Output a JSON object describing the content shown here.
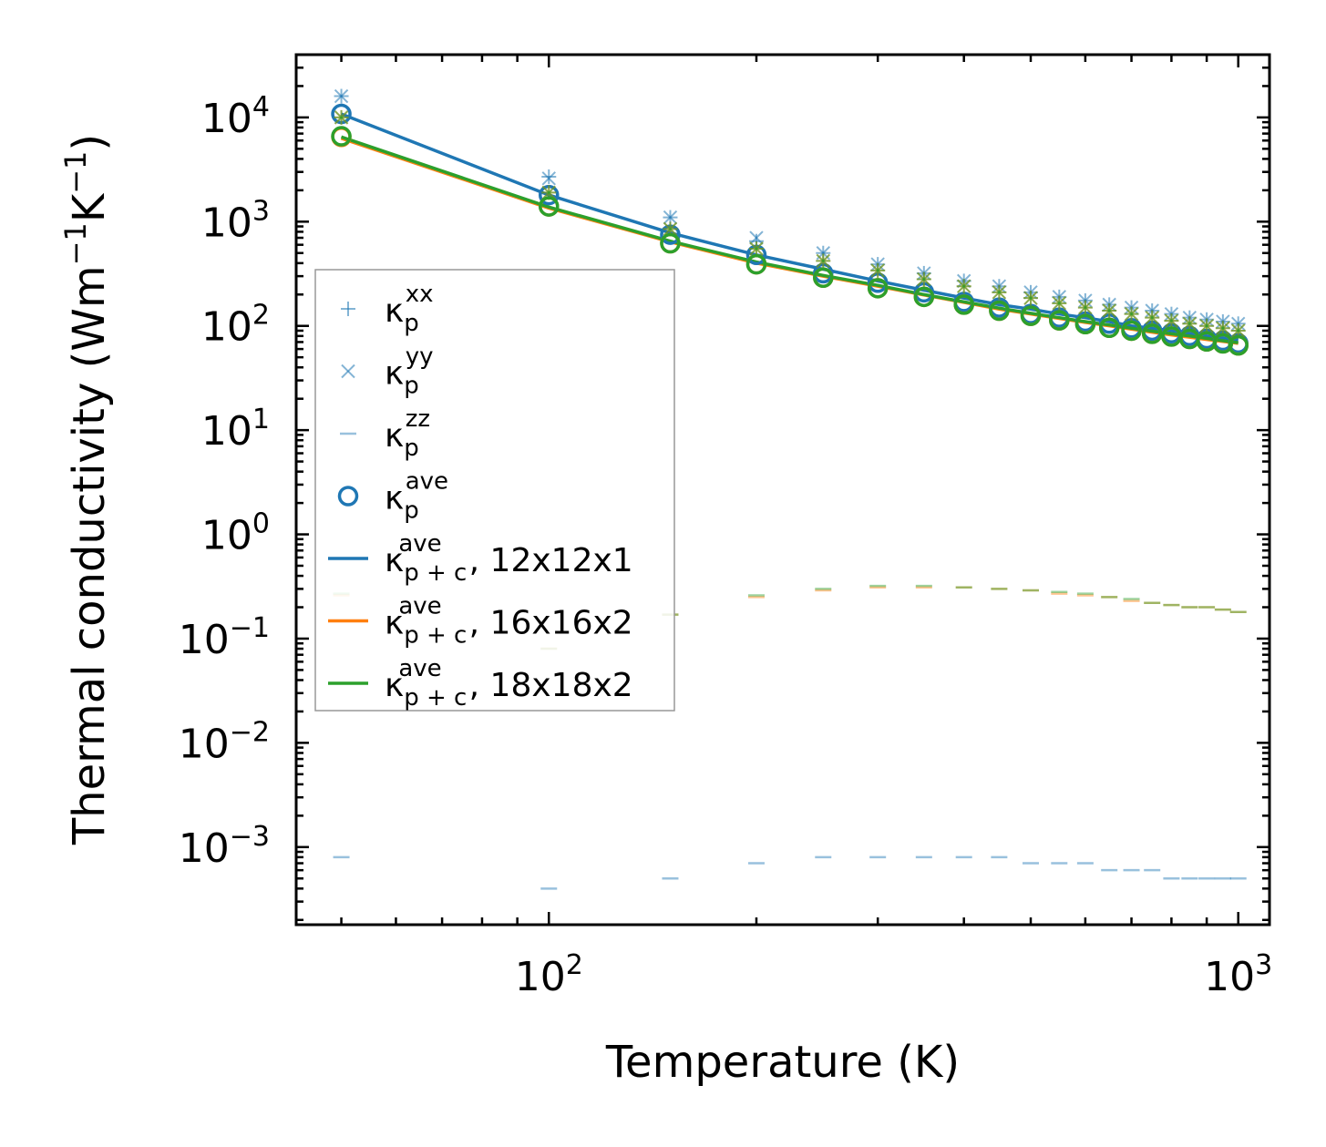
{
  "chart_data": {
    "type": "line",
    "title": "",
    "xlabel": "Temperature (K)",
    "ylabel_parts": {
      "base": "Thermal conductivity (Wm",
      "exp1": "−1",
      "mid": "K",
      "exp2": "−1",
      "end": ")"
    },
    "xscale": "log",
    "yscale": "log",
    "xlim": [
      43,
      1110
    ],
    "ylim": [
      0.00018,
      40000
    ],
    "xticks": [
      {
        "value": 100,
        "base": "10",
        "exp": "2"
      },
      {
        "value": 1000,
        "base": "10",
        "exp": "3"
      }
    ],
    "yticks": [
      {
        "value": 10000,
        "base": "10",
        "exp": "4"
      },
      {
        "value": 1000,
        "base": "10",
        "exp": "3"
      },
      {
        "value": 100,
        "base": "10",
        "exp": "2"
      },
      {
        "value": 10,
        "base": "10",
        "exp": "1"
      },
      {
        "value": 1,
        "base": "10",
        "exp": "0"
      },
      {
        "value": 0.1,
        "base": "10",
        "exp": "−1"
      },
      {
        "value": 0.01,
        "base": "10",
        "exp": "−2"
      },
      {
        "value": 0.001,
        "base": "10",
        "exp": "−3"
      }
    ],
    "x": [
      50,
      100,
      150,
      200,
      250,
      300,
      350,
      400,
      450,
      500,
      550,
      600,
      650,
      700,
      750,
      800,
      850,
      900,
      950,
      1000
    ],
    "series": [
      {
        "name": "12x12x1 κp xx",
        "kind": "plus",
        "color": "#1f77b4",
        "values": [
          16000,
          2700,
          1100,
          650,
          500,
          390,
          320,
          270,
          240,
          210,
          190,
          175,
          160,
          150,
          140,
          130,
          120,
          115,
          110,
          105
        ]
      },
      {
        "name": "12x12x1 κp yy",
        "kind": "x",
        "color": "#1f77b4",
        "values": [
          16000,
          2600,
          1100,
          700,
          500,
          390,
          320,
          270,
          240,
          210,
          190,
          175,
          160,
          150,
          140,
          130,
          120,
          115,
          110,
          105
        ]
      },
      {
        "name": "12x12x1 κp zz",
        "kind": "dash",
        "color": "#1f77b4",
        "values": [
          0.0008,
          0.0004,
          0.0005,
          0.0007,
          0.0008,
          0.0008,
          0.0008,
          0.0008,
          0.0008,
          0.0007,
          0.0007,
          0.0007,
          0.0006,
          0.0006,
          0.0006,
          0.0005,
          0.0005,
          0.0005,
          0.0005,
          0.0005
        ]
      },
      {
        "name": "12x12x1 κp ave",
        "kind": "circle",
        "color": "#1f77b4",
        "values": [
          10800,
          1800,
          750,
          480,
          320,
          260,
          210,
          170,
          150,
          130,
          120,
          110,
          105,
          95,
          90,
          85,
          80,
          75,
          72,
          68
        ]
      },
      {
        "name": "12x12x1 κp+c ave",
        "kind": "line",
        "color": "#1f77b4",
        "values": [
          10800,
          1800,
          780,
          480,
          350,
          270,
          220,
          185,
          160,
          145,
          130,
          120,
          110,
          100,
          95,
          90,
          85,
          80,
          77,
          73
        ]
      },
      {
        "name": "16x16x2 κp xx",
        "kind": "plus",
        "color": "#ff7f0e",
        "values": [
          10000,
          1900,
          850,
          550,
          420,
          340,
          280,
          240,
          210,
          185,
          165,
          150,
          140,
          130,
          120,
          112,
          105,
          100,
          95,
          90
        ]
      },
      {
        "name": "16x16x2 κp yy",
        "kind": "x",
        "color": "#ff7f0e",
        "values": [
          10000,
          1900,
          850,
          550,
          420,
          340,
          280,
          240,
          210,
          185,
          165,
          150,
          140,
          130,
          120,
          112,
          105,
          100,
          95,
          90
        ]
      },
      {
        "name": "16x16x2 κp zz",
        "kind": "dash",
        "color": "#ff7f0e",
        "values": [
          0.26,
          0.08,
          0.17,
          0.25,
          0.29,
          0.31,
          0.31,
          0.31,
          0.3,
          0.29,
          0.27,
          0.26,
          0.25,
          0.23,
          0.22,
          0.21,
          0.2,
          0.2,
          0.19,
          0.18
        ]
      },
      {
        "name": "16x16x2 κp ave",
        "kind": "circle",
        "color": "#ff7f0e",
        "values": [
          6500,
          1400,
          620,
          390,
          290,
          230,
          190,
          160,
          140,
          125,
          113,
          104,
          96,
          90,
          84,
          79,
          75,
          71,
          68,
          65
        ]
      },
      {
        "name": "16x16x2 κp+c ave",
        "kind": "line",
        "color": "#ff7f0e",
        "values": [
          6300,
          1350,
          640,
          400,
          300,
          240,
          198,
          168,
          145,
          130,
          118,
          108,
          100,
          93,
          87,
          82,
          78,
          74,
          71,
          68
        ]
      },
      {
        "name": "18x18x2 κp xx",
        "kind": "plus",
        "color": "#2ca02c",
        "values": [
          10000,
          1900,
          850,
          550,
          420,
          340,
          280,
          240,
          210,
          185,
          165,
          150,
          140,
          130,
          120,
          112,
          105,
          100,
          95,
          90
        ]
      },
      {
        "name": "18x18x2 κp yy",
        "kind": "x",
        "color": "#2ca02c",
        "values": [
          10000,
          1900,
          850,
          550,
          420,
          340,
          280,
          240,
          210,
          185,
          165,
          150,
          140,
          130,
          120,
          112,
          105,
          100,
          95,
          90
        ]
      },
      {
        "name": "18x18x2 κp zz",
        "kind": "dash",
        "color": "#2ca02c",
        "values": [
          0.27,
          0.08,
          0.17,
          0.26,
          0.3,
          0.32,
          0.32,
          0.31,
          0.3,
          0.29,
          0.28,
          0.27,
          0.25,
          0.24,
          0.22,
          0.21,
          0.2,
          0.2,
          0.19,
          0.18
        ]
      },
      {
        "name": "18x18x2 κp ave",
        "kind": "circle",
        "color": "#2ca02c",
        "values": [
          6600,
          1400,
          620,
          390,
          290,
          230,
          190,
          160,
          140,
          125,
          113,
          104,
          96,
          90,
          84,
          79,
          75,
          71,
          68,
          65
        ]
      },
      {
        "name": "18x18x2 κp+c ave",
        "kind": "line",
        "color": "#2ca02c",
        "values": [
          6500,
          1380,
          650,
          410,
          305,
          245,
          200,
          170,
          148,
          132,
          120,
          110,
          102,
          95,
          89,
          84,
          80,
          76,
          72,
          69
        ]
      }
    ],
    "legend": {
      "position": "center-left",
      "entries": [
        {
          "kind": "plus",
          "color": "#1f77b4",
          "sym": "κ",
          "sub": "p",
          "sup": "xx",
          "suffix": ""
        },
        {
          "kind": "x",
          "color": "#1f77b4",
          "sym": "κ",
          "sub": "p",
          "sup": "yy",
          "suffix": ""
        },
        {
          "kind": "dash",
          "color": "#1f77b4",
          "sym": "κ",
          "sub": "p",
          "sup": "zz",
          "suffix": ""
        },
        {
          "kind": "circle",
          "color": "#1f77b4",
          "sym": "κ",
          "sub": "p",
          "sup": "ave",
          "suffix": ""
        },
        {
          "kind": "line",
          "color": "#1f77b4",
          "sym": "κ",
          "sub": "p + c",
          "sup": "ave",
          "suffix": ", 12x12x1"
        },
        {
          "kind": "line",
          "color": "#ff7f0e",
          "sym": "κ",
          "sub": "p + c",
          "sup": "ave",
          "suffix": ", 16x16x2"
        },
        {
          "kind": "line",
          "color": "#2ca02c",
          "sym": "κ",
          "sub": "p + c",
          "sup": "ave",
          "suffix": ", 18x18x2"
        }
      ]
    }
  }
}
